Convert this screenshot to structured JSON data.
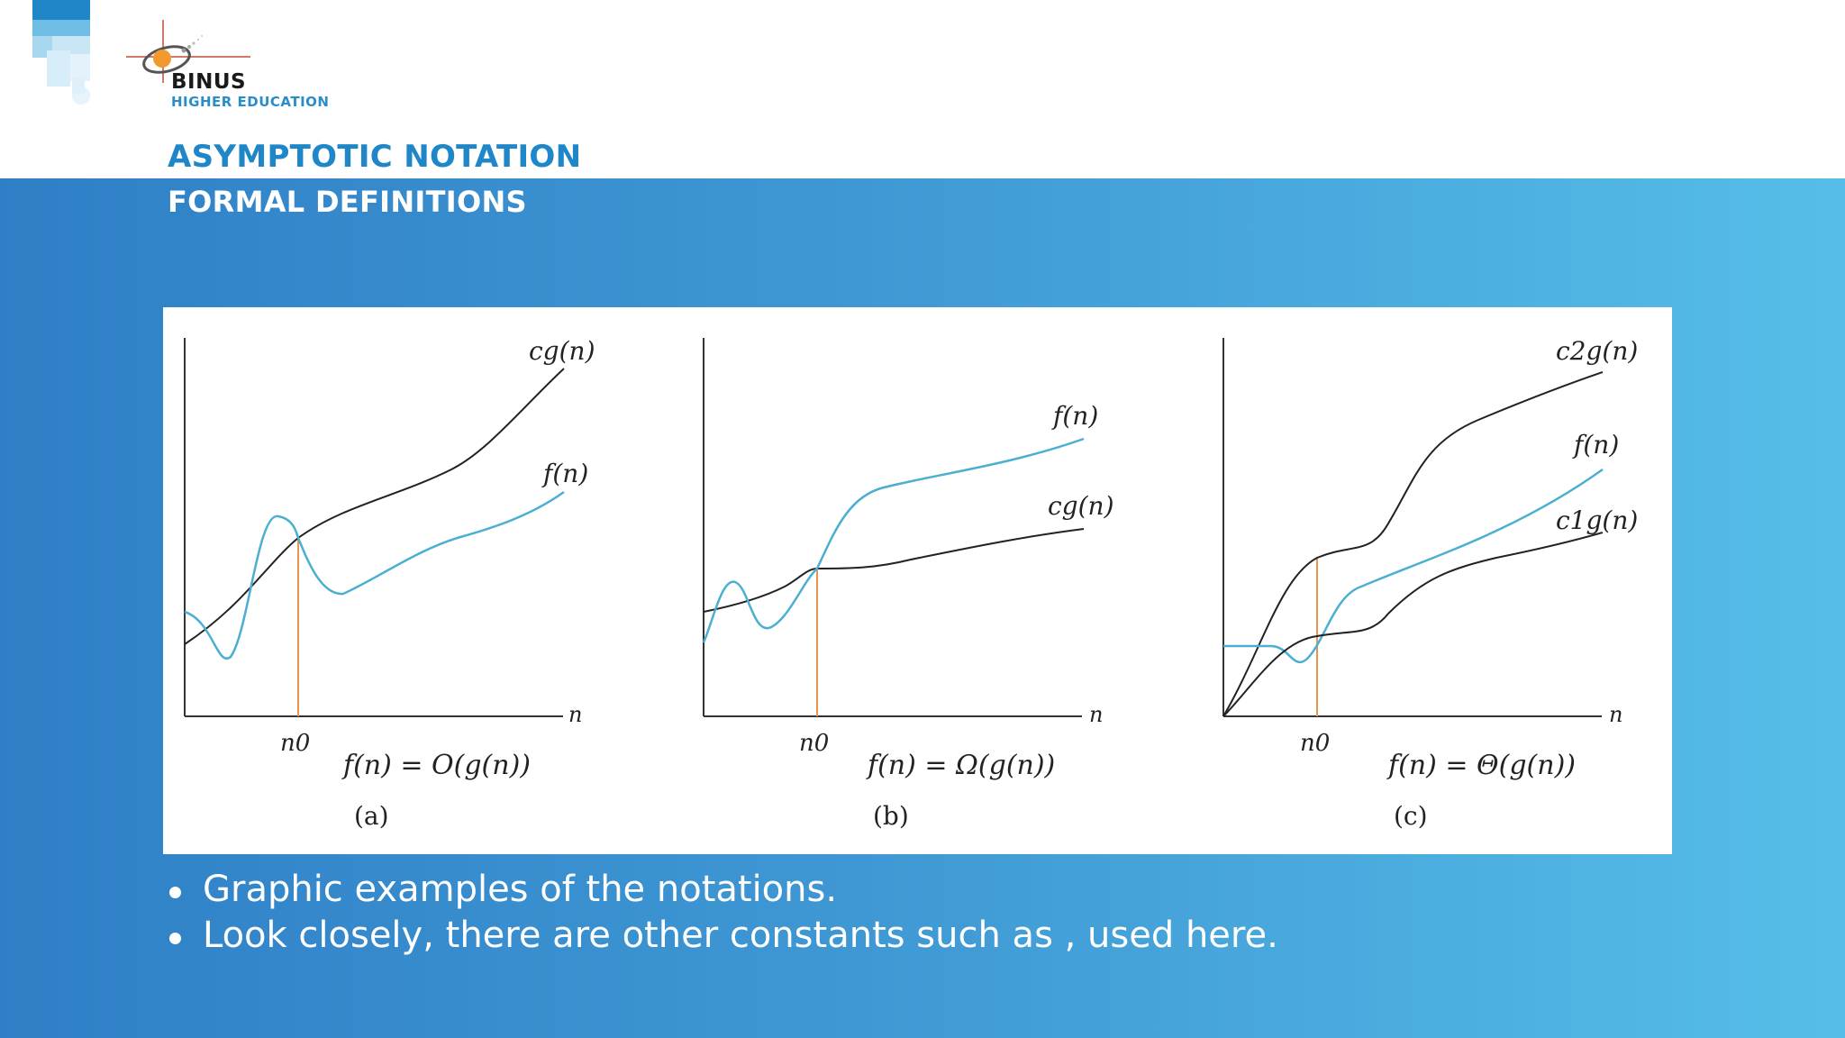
{
  "header": {
    "logo_name": "BINUS",
    "logo_subtitle": "HIGHER EDUCATION",
    "title": "ASYMPTOTIC NOTATION",
    "subtitle": "FORMAL DEFINITIONS"
  },
  "colors": {
    "title_blue": "#1f86c8",
    "band_start": "#2f7fc6",
    "band_end": "#56bde8",
    "curve_f": "#4aafd0",
    "curve_g": "#222222",
    "marker_n0": "#e8944c"
  },
  "figure": {
    "panels": [
      {
        "caption": "(a)",
        "formula": "f(n) = O(g(n))",
        "x_axis_label": "n",
        "n0_label": "n0",
        "upper_label": "cg(n)",
        "middle_label": "f(n)"
      },
      {
        "caption": "(b)",
        "formula": "f(n) = Ω(g(n))",
        "x_axis_label": "n",
        "n0_label": "n0",
        "upper_label": "f(n)",
        "middle_label": "cg(n)"
      },
      {
        "caption": "(c)",
        "formula": "f(n) = Θ(g(n))",
        "x_axis_label": "n",
        "n0_label": "n0",
        "upper_label": "c2g(n)",
        "middle_label": "f(n)",
        "lower_label": "c1g(n)"
      }
    ]
  },
  "bullets": [
    "Graphic examples of the notations.",
    "Look closely, there are other constants such as ,  used here."
  ]
}
